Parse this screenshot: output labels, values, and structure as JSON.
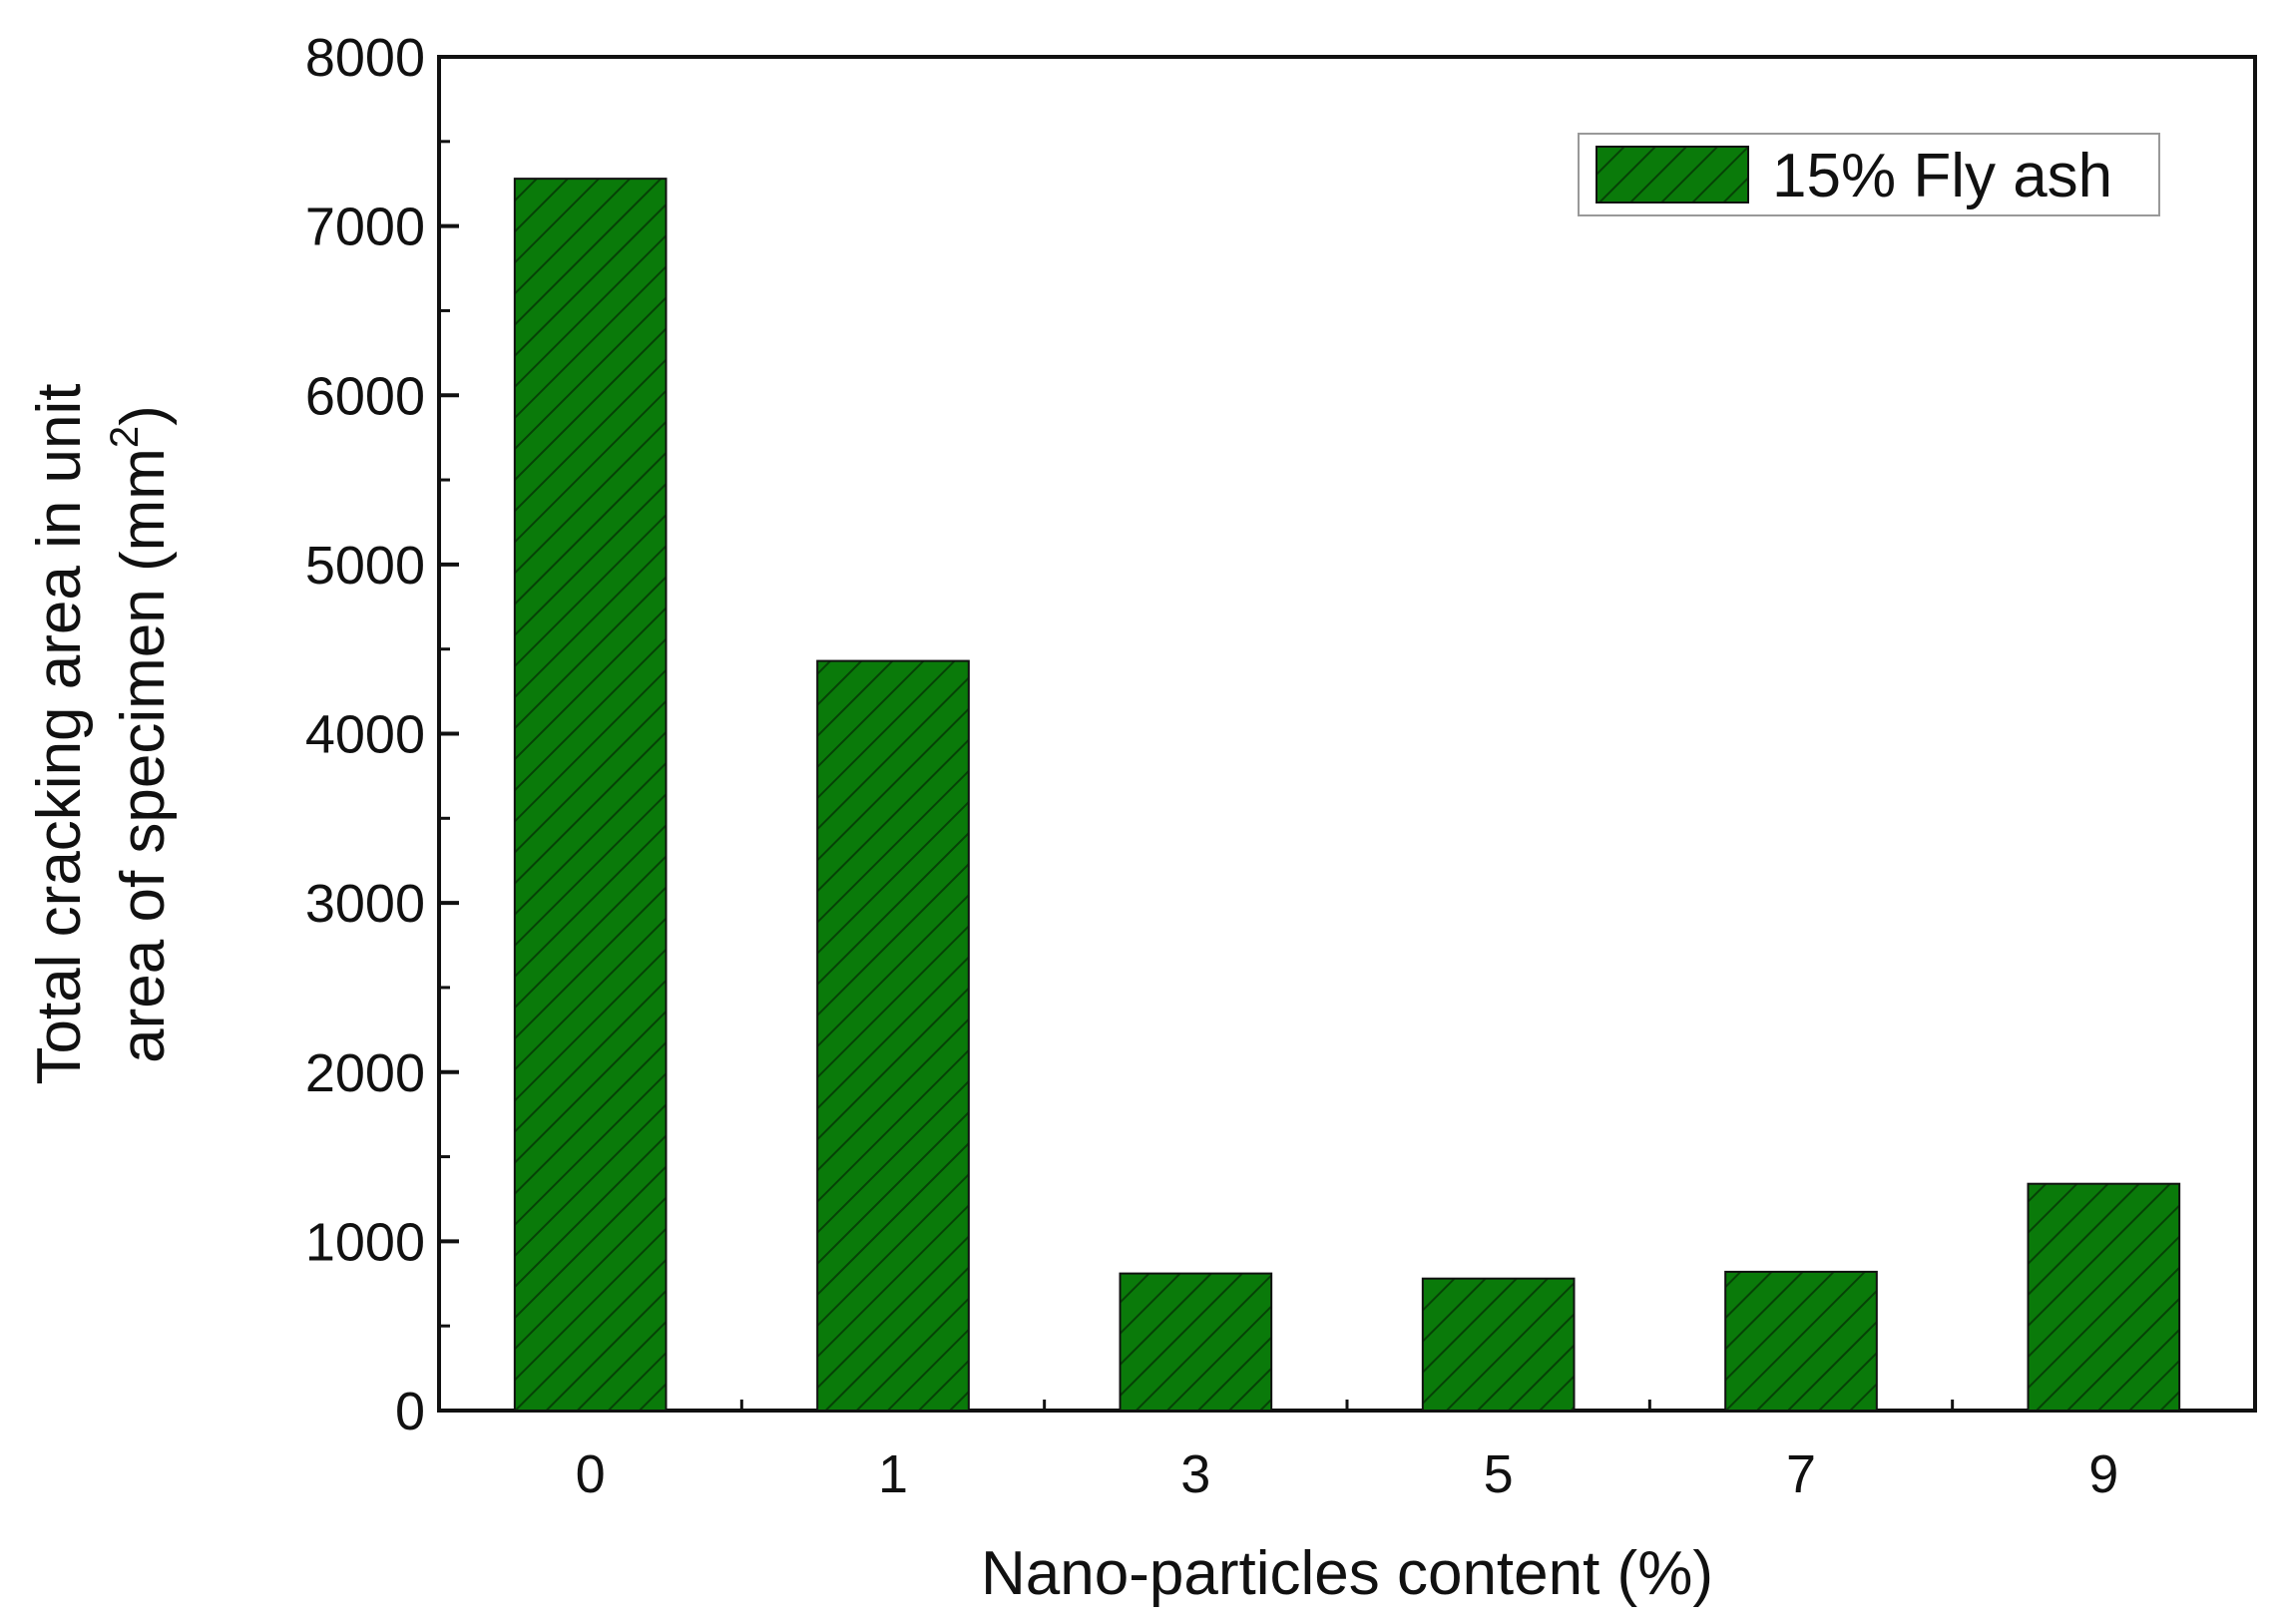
{
  "chart_data": {
    "type": "bar",
    "categories": [
      "0",
      "1",
      "3",
      "5",
      "7",
      "9"
    ],
    "series": [
      {
        "name": "15% Fly ash",
        "values": [
          7280,
          4430,
          810,
          780,
          820,
          1340
        ]
      }
    ],
    "xlabel": "Nano-particles content (%)",
    "ylabel_line1": "Total cracking area in unit",
    "ylabel_line2_main": "area of specimen (mm",
    "ylabel_line2_sup": "2",
    "ylabel_line2_end": ")",
    "ylim": [
      0,
      8000
    ],
    "yticks": [
      "0",
      "1000",
      "2000",
      "3000",
      "4000",
      "5000",
      "6000",
      "7000",
      "8000"
    ],
    "grid": false,
    "legend_position": "top-right",
    "bar_color": "#0a7a0a",
    "bar_pattern": "diagonal-hatch"
  }
}
